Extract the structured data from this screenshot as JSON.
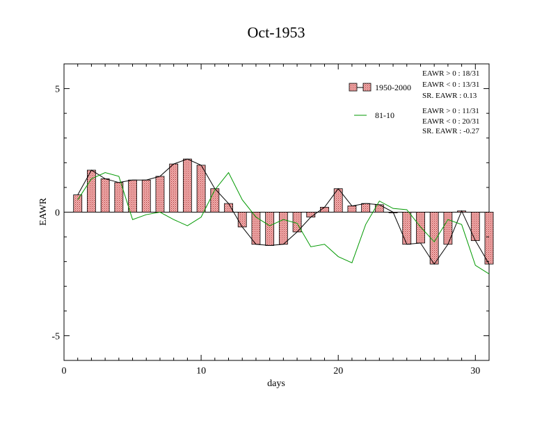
{
  "chart_data": {
    "type": "bar",
    "title": "Oct-1953",
    "xlabel": "days",
    "ylabel": "EAWR",
    "xlim": [
      0,
      31
    ],
    "ylim": [
      -6,
      6
    ],
    "xticks": [
      0,
      10,
      20,
      30
    ],
    "yticks": [
      -5,
      0,
      5
    ],
    "ytick_labels": [
      "-5",
      "0",
      "5"
    ],
    "grid": false,
    "legend_position": "top-right",
    "series": [
      {
        "name": "1950-2000",
        "type": "bar",
        "color": "#e89090",
        "days": [
          1,
          2,
          3,
          4,
          5,
          6,
          7,
          8,
          9,
          10,
          11,
          12,
          13,
          14,
          15,
          16,
          17,
          18,
          19,
          20,
          21,
          22,
          23,
          24,
          25,
          26,
          27,
          28,
          29,
          30,
          31
        ],
        "values": [
          0.7,
          1.7,
          1.35,
          1.2,
          1.3,
          1.3,
          1.45,
          1.95,
          2.15,
          1.9,
          0.95,
          0.35,
          -0.6,
          -1.3,
          -1.35,
          -1.3,
          -0.8,
          -0.2,
          0.2,
          0.95,
          0.25,
          0.35,
          0.3,
          0.0,
          -1.3,
          -1.25,
          -2.1,
          -1.3,
          0.05,
          -1.15,
          -2.1
        ]
      },
      {
        "name": "81-10",
        "type": "line",
        "color": "#009900",
        "days": [
          1,
          2,
          3,
          4,
          5,
          6,
          7,
          8,
          9,
          10,
          11,
          12,
          13,
          14,
          15,
          16,
          17,
          18,
          19,
          20,
          21,
          22,
          23,
          24,
          25,
          26,
          27,
          28,
          29,
          30,
          31
        ],
        "values": [
          0.5,
          1.35,
          1.6,
          1.45,
          -0.3,
          -0.1,
          0.0,
          -0.3,
          -0.55,
          -0.2,
          0.9,
          1.6,
          0.5,
          -0.2,
          -0.55,
          -0.3,
          -0.45,
          -1.4,
          -1.3,
          -1.8,
          -2.05,
          -0.5,
          0.45,
          0.15,
          0.1,
          -0.6,
          -1.2,
          -0.3,
          -0.5,
          -2.15,
          -2.5
        ]
      }
    ],
    "annotations": [
      [
        "EAWR > 0 : 18/31",
        "EAWR < 0 : 13/31",
        "SR. EAWR :  0.13"
      ],
      [
        "EAWR > 0 : 11/31",
        "EAWR < 0 : 20/31",
        "SR. EAWR : -0.27"
      ]
    ]
  }
}
